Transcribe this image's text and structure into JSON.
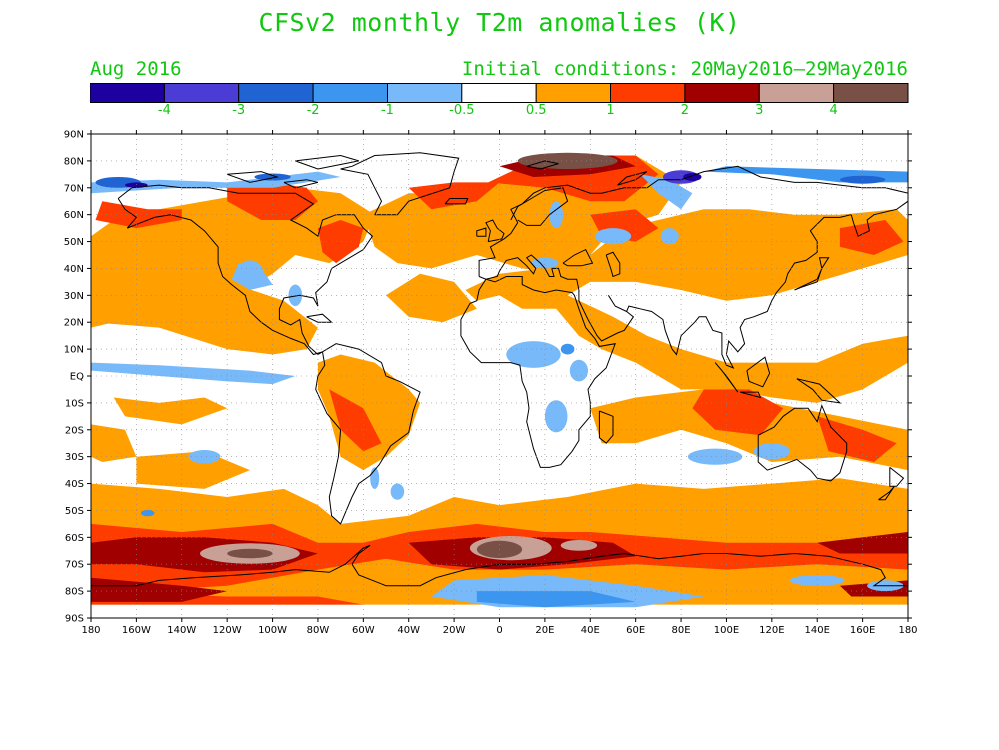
{
  "title": "CFSv2 monthly T2m anomalies (K)",
  "valid_period": "Aug 2016",
  "initial_conditions": "Initial conditions: 20May2016–29May2016",
  "colorbar": {
    "colors": [
      "#1e00a0",
      "#4b3cd6",
      "#1f64d2",
      "#3c96f0",
      "#78b9fa",
      "#ffffff",
      "#ffa000",
      "#ff3c00",
      "#a00000",
      "#c8a096",
      "#785046"
    ],
    "labels": [
      "-4",
      "-3",
      "-2",
      "-1",
      "-0.5",
      "0.5",
      "1",
      "2",
      "3",
      "4"
    ]
  },
  "axes": {
    "lat_labels": [
      "90N",
      "80N",
      "70N",
      "60N",
      "50N",
      "40N",
      "30N",
      "20N",
      "10N",
      "EQ",
      "10S",
      "20S",
      "30S",
      "40S",
      "50S",
      "60S",
      "70S",
      "80S",
      "90S"
    ],
    "lon_labels": [
      "180",
      "160W",
      "140W",
      "120W",
      "100W",
      "80W",
      "60W",
      "40W",
      "20W",
      "0",
      "20E",
      "40E",
      "60E",
      "80E",
      "100E",
      "120E",
      "140E",
      "160E",
      "180"
    ]
  },
  "map_colors": {
    "warm1": "#ffa000",
    "warm2": "#ff3c00",
    "warm3": "#a00000",
    "warm4": "#c8a096",
    "warm5": "#785046",
    "cool1": "#78b9fa",
    "cool2": "#3c96f0",
    "cool3": "#1f64d2",
    "cool4": "#4b3cd6",
    "cool5": "#1e00a0"
  }
}
